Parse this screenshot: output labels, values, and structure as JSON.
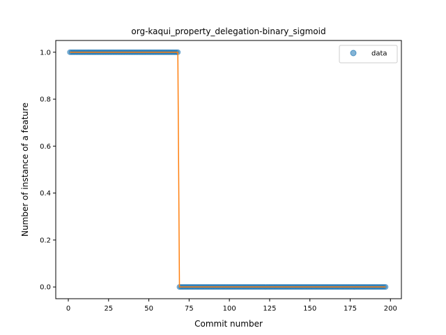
{
  "chart_data": {
    "type": "scatter",
    "title": "org-kaqui_property_delegation-binary_sigmoid",
    "xlabel": "Commit number",
    "ylabel": "Number of instance of a feature",
    "xlim": [
      -7.8,
      206.8
    ],
    "ylim": [
      -0.05,
      1.05
    ],
    "xticks": [
      0,
      25,
      50,
      75,
      100,
      125,
      150,
      175,
      200
    ],
    "yticks": [
      0.0,
      0.2,
      0.4,
      0.6,
      0.8,
      1.0
    ],
    "xtick_labels": [
      "0",
      "25",
      "50",
      "75",
      "100",
      "125",
      "150",
      "175",
      "200"
    ],
    "ytick_labels": [
      "0.0",
      "0.2",
      "0.4",
      "0.6",
      "0.8",
      "1.0"
    ],
    "grid": false,
    "legend_position": "upper-right",
    "series": [
      {
        "name": "data",
        "kind": "scatter",
        "color": "#1f77b4",
        "x_start": 1,
        "x_end": 197,
        "step": 1,
        "threshold_x": 68,
        "y_at_or_below_threshold": 1,
        "y_above_threshold": 0
      },
      {
        "kind": "line",
        "color": "#ff7f0e",
        "x": [
          1,
          68,
          69,
          197
        ],
        "y": [
          1,
          1,
          0,
          0
        ]
      }
    ]
  }
}
